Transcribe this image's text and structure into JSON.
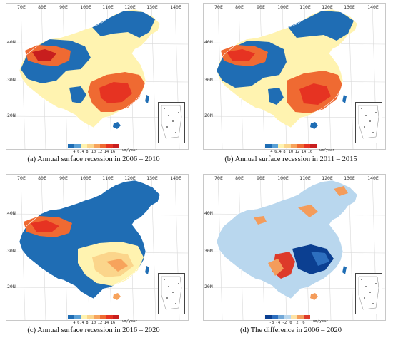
{
  "grid": {
    "lon_labels": [
      "70E",
      "80E",
      "90E",
      "100E",
      "110E",
      "120E",
      "130E",
      "140E"
    ],
    "lat_labels": [
      "40N",
      "30N",
      "20N"
    ]
  },
  "legend_unit": "um/year",
  "legends": {
    "recession": {
      "ticks": [
        "4",
        "6.4",
        "8",
        "10",
        "12",
        "14",
        "16"
      ],
      "colors": [
        "#1f6db4",
        "#5aa0d6",
        "#fff3b0",
        "#fbd58b",
        "#f7a35c",
        "#ef6a32",
        "#e63322",
        "#c81e1e"
      ]
    },
    "difference": {
      "ticks": [
        "-8",
        "-4",
        "-2",
        "0",
        "2",
        "6"
      ],
      "colors": [
        "#0b3f91",
        "#2d6fbf",
        "#74a9d8",
        "#b9d7ee",
        "#fde3a6",
        "#f49c5b",
        "#dd3a2a"
      ]
    }
  },
  "panels": [
    {
      "caption": "(a) Annual surface recession in 2006 – 2010",
      "legend": "recession"
    },
    {
      "caption": "(b) Annual surface recession in 2011 – 2015",
      "legend": "recession"
    },
    {
      "caption": "(c) Annual surface recession in 2016 – 2020",
      "legend": "recession"
    },
    {
      "caption": "(d) The difference in 2006 – 2020",
      "legend": "difference"
    }
  ]
}
